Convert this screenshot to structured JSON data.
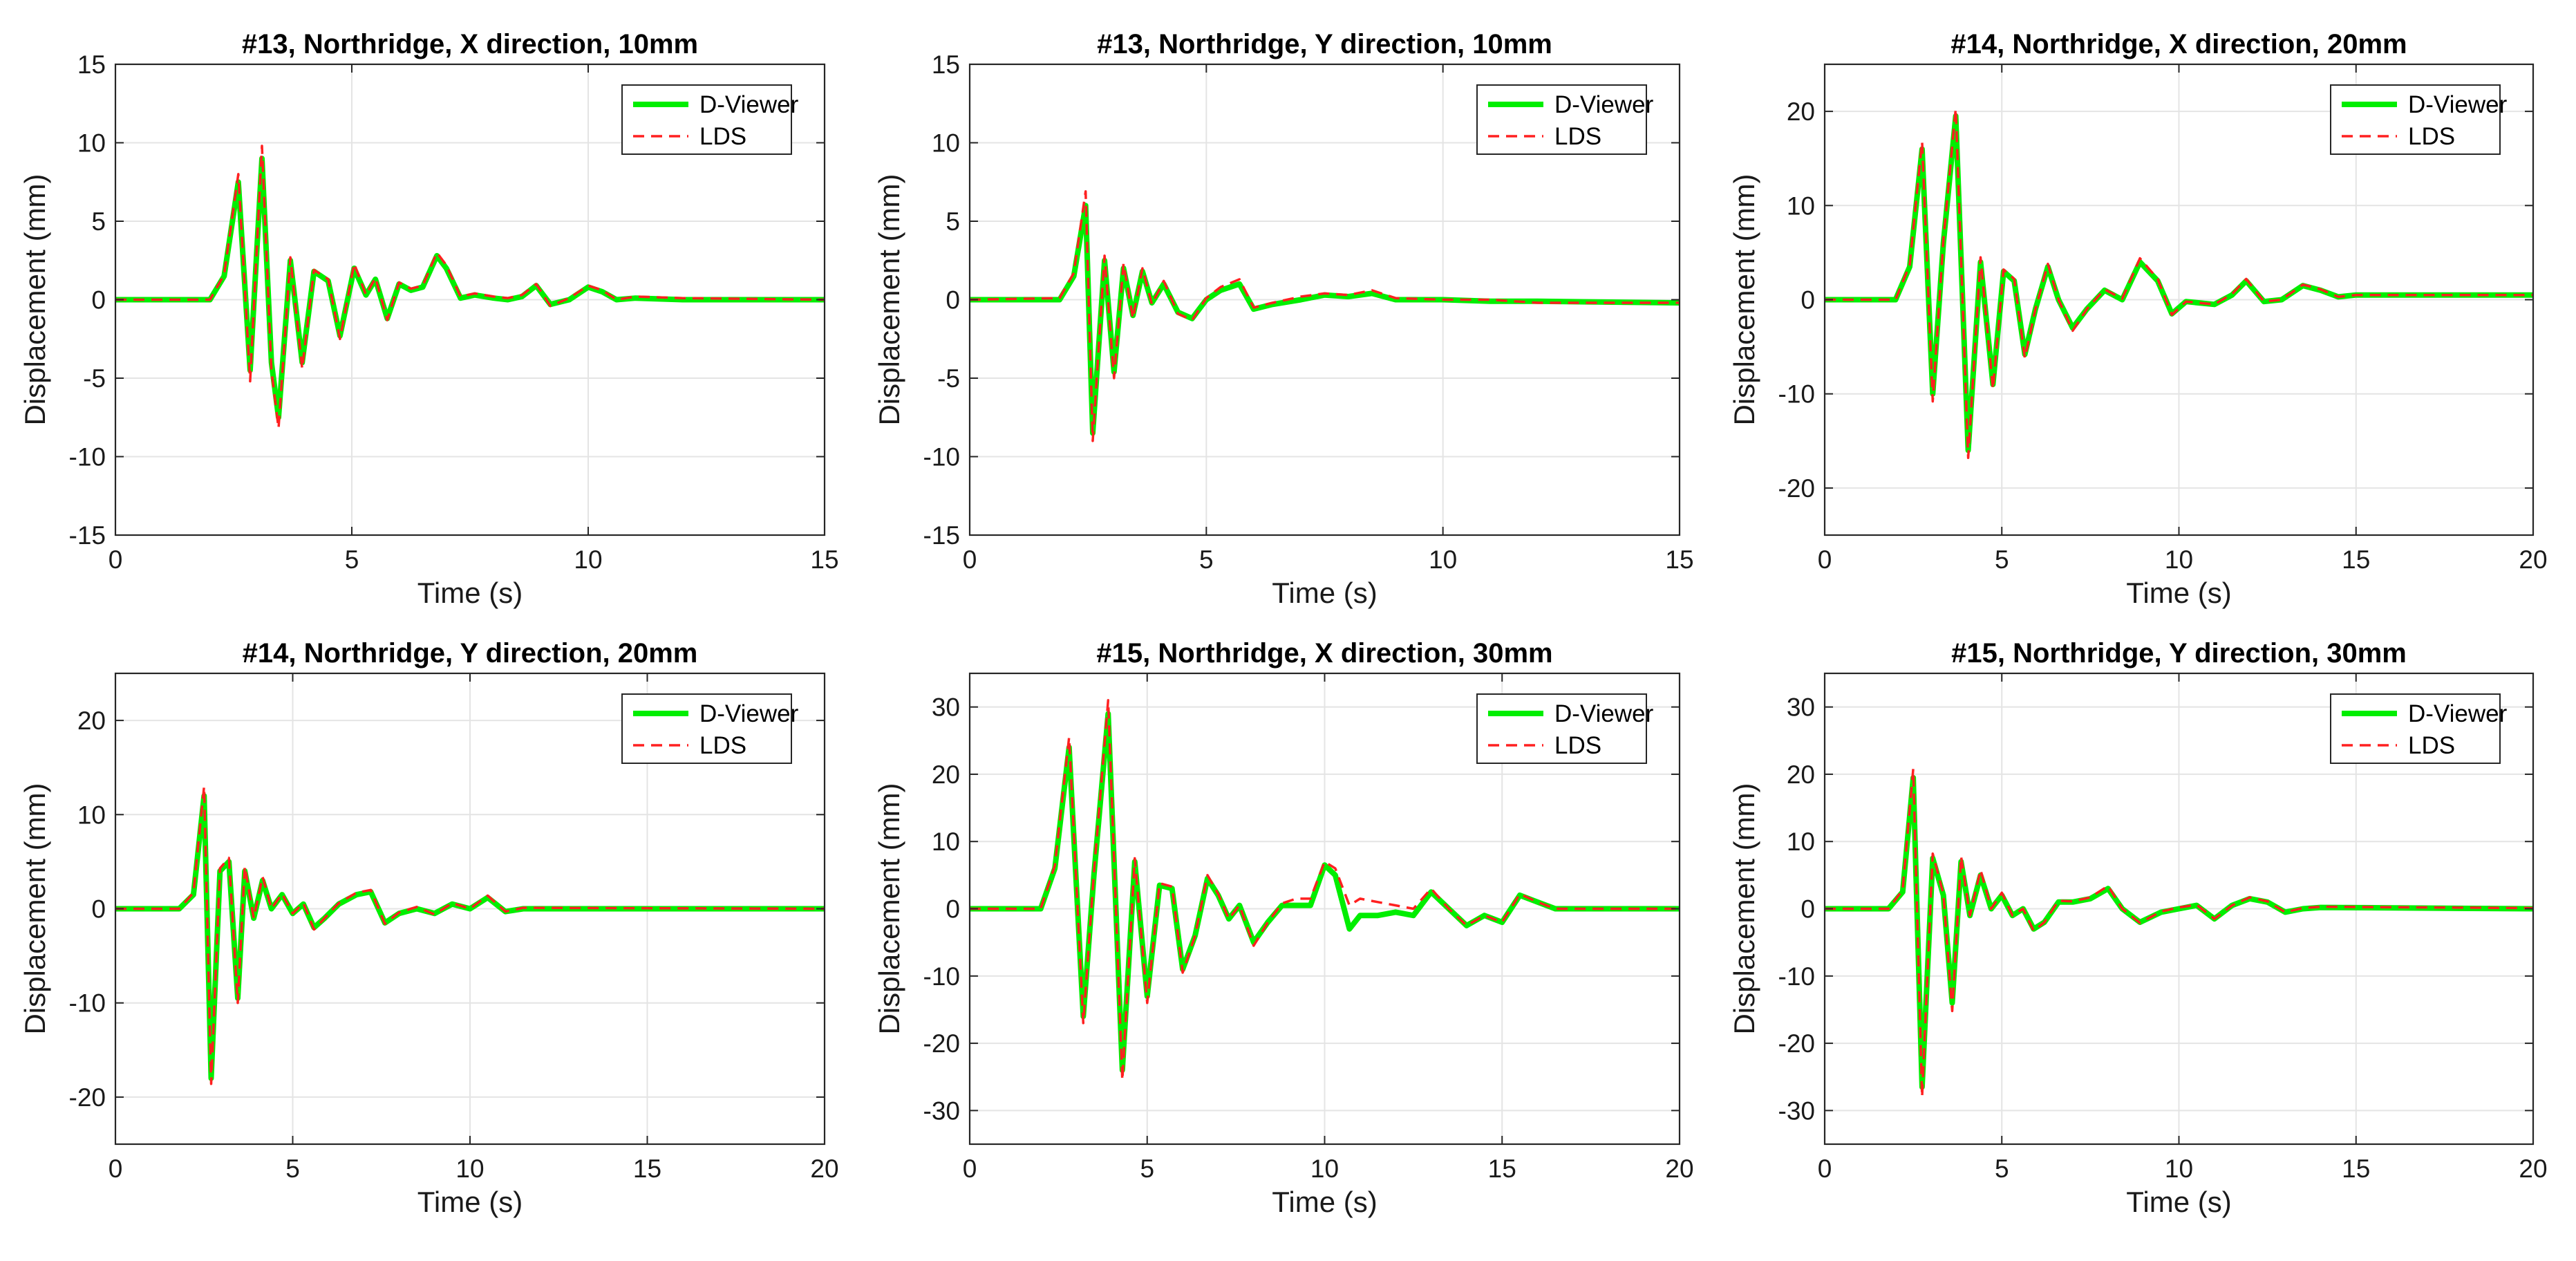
{
  "chart_data": [
    {
      "type": "line",
      "title": "#13, Northridge, X direction, 10mm",
      "xlabel": "Time (s)",
      "ylabel": "Displacement (mm)",
      "xlim": [
        0,
        15
      ],
      "ylim": [
        -15,
        15
      ],
      "xticks": [
        0,
        5,
        10,
        15
      ],
      "yticks": [
        -15,
        -10,
        -5,
        0,
        5,
        10,
        15
      ],
      "grid": true,
      "legend_position": "top-right",
      "series": [
        {
          "name": "D-Viewer",
          "color": "#00ee00",
          "style": "solid",
          "x": [
            0,
            2.0,
            2.3,
            2.6,
            2.85,
            3.1,
            3.3,
            3.45,
            3.7,
            3.95,
            4.2,
            4.5,
            4.75,
            5.05,
            5.3,
            5.5,
            5.75,
            6.0,
            6.25,
            6.5,
            6.8,
            7.0,
            7.3,
            7.6,
            8.0,
            8.3,
            8.6,
            8.9,
            9.2,
            9.6,
            10.0,
            10.3,
            10.6,
            11.0,
            12.0,
            15.0
          ],
          "y": [
            0,
            0,
            1.5,
            7.5,
            -4.5,
            9.0,
            -4.0,
            -7.5,
            2.5,
            -4.0,
            1.8,
            1.2,
            -2.3,
            2.0,
            0.3,
            1.3,
            -1.2,
            1.0,
            0.6,
            0.8,
            2.8,
            2.0,
            0.1,
            0.3,
            0.1,
            0.0,
            0.2,
            0.9,
            -0.3,
            0.0,
            0.8,
            0.5,
            0.0,
            0.1,
            0.0,
            0.0
          ]
        },
        {
          "name": "LDS",
          "color": "#ff2020",
          "style": "dashed",
          "x": [
            0,
            2.0,
            2.3,
            2.6,
            2.85,
            3.1,
            3.3,
            3.45,
            3.7,
            3.95,
            4.2,
            4.5,
            4.75,
            5.05,
            5.3,
            5.5,
            5.75,
            6.0,
            6.25,
            6.5,
            6.8,
            7.0,
            7.3,
            7.6,
            8.0,
            8.3,
            8.6,
            8.9,
            9.2,
            9.6,
            10.0,
            10.3,
            10.6,
            11.0,
            12.0,
            15.0
          ],
          "y": [
            0,
            0,
            1.6,
            8.0,
            -5.2,
            9.8,
            -4.5,
            -8.2,
            2.7,
            -4.4,
            1.9,
            1.3,
            -2.5,
            2.3,
            0.3,
            1.4,
            -1.3,
            1.1,
            0.7,
            0.9,
            3.0,
            2.2,
            0.2,
            0.4,
            0.2,
            0.1,
            0.3,
            1.0,
            -0.4,
            0.1,
            0.9,
            0.6,
            0.0,
            0.2,
            0.1,
            0.0
          ]
        }
      ]
    },
    {
      "type": "line",
      "title": "#13, Northridge, Y direction, 10mm",
      "xlabel": "Time (s)",
      "ylabel": "Displacement (mm)",
      "xlim": [
        0,
        15
      ],
      "ylim": [
        -15,
        15
      ],
      "xticks": [
        0,
        5,
        10,
        15
      ],
      "yticks": [
        -15,
        -10,
        -5,
        0,
        5,
        10,
        15
      ],
      "grid": true,
      "legend_position": "top-right",
      "series": [
        {
          "name": "D-Viewer",
          "color": "#00ee00",
          "style": "solid",
          "x": [
            0,
            1.9,
            2.2,
            2.45,
            2.6,
            2.85,
            3.05,
            3.25,
            3.45,
            3.65,
            3.85,
            4.1,
            4.4,
            4.7,
            5.0,
            5.3,
            5.7,
            6.0,
            6.4,
            7.0,
            7.5,
            8.0,
            8.5,
            9.0,
            10.0,
            11.0,
            12.0,
            15.0
          ],
          "y": [
            0,
            0,
            1.5,
            6.0,
            -8.5,
            2.5,
            -4.6,
            2.0,
            -1.0,
            1.8,
            -0.2,
            1.0,
            -0.8,
            -1.2,
            0.0,
            0.6,
            1.0,
            -0.6,
            -0.3,
            0.0,
            0.3,
            0.2,
            0.4,
            0.0,
            0.0,
            -0.1,
            -0.1,
            -0.2
          ]
        },
        {
          "name": "LDS",
          "color": "#ff2020",
          "style": "dashed",
          "x": [
            0,
            1.9,
            2.2,
            2.45,
            2.6,
            2.85,
            3.05,
            3.25,
            3.45,
            3.65,
            3.85,
            4.1,
            4.4,
            4.7,
            5.0,
            5.3,
            5.7,
            6.0,
            6.4,
            7.0,
            7.5,
            8.0,
            8.5,
            9.0,
            10.0,
            11.0,
            12.0,
            15.0
          ],
          "y": [
            0,
            0.1,
            1.7,
            6.9,
            -9.0,
            2.8,
            -5.0,
            2.3,
            -1.2,
            2.0,
            -0.3,
            1.2,
            -0.9,
            -1.3,
            0.1,
            0.8,
            1.3,
            -0.5,
            -0.2,
            0.2,
            0.4,
            0.3,
            0.6,
            0.1,
            0.0,
            0.0,
            -0.2,
            -0.2
          ]
        }
      ]
    },
    {
      "type": "line",
      "title": "#14, Northridge, X direction, 20mm",
      "xlabel": "Time (s)",
      "ylabel": "Displacement (mm)",
      "xlim": [
        0,
        20
      ],
      "ylim": [
        -25,
        25
      ],
      "xticks": [
        0,
        5,
        10,
        15,
        20
      ],
      "yticks": [
        -20,
        -10,
        0,
        10,
        20
      ],
      "grid": true,
      "legend_position": "top-right",
      "series": [
        {
          "name": "D-Viewer",
          "color": "#00ee00",
          "style": "solid",
          "x": [
            0,
            2.0,
            2.4,
            2.75,
            3.05,
            3.35,
            3.7,
            4.05,
            4.4,
            4.75,
            5.05,
            5.35,
            5.65,
            5.95,
            6.3,
            6.6,
            7.0,
            7.4,
            7.9,
            8.4,
            8.9,
            9.4,
            9.8,
            10.2,
            11.0,
            11.5,
            11.9,
            12.4,
            12.9,
            13.5,
            14.0,
            14.5,
            15.0,
            20.0
          ],
          "y": [
            0,
            0,
            3.5,
            16.0,
            -10.0,
            6.0,
            19.5,
            -16.0,
            4.0,
            -9.0,
            3.0,
            2.0,
            -5.8,
            -1.0,
            3.5,
            0.0,
            -3.0,
            -1.0,
            1.0,
            0.0,
            4.0,
            2.0,
            -1.5,
            -0.2,
            -0.5,
            0.5,
            2.0,
            -0.2,
            0.0,
            1.5,
            1.0,
            0.3,
            0.5,
            0.5
          ]
        },
        {
          "name": "LDS",
          "color": "#ff2020",
          "style": "dashed",
          "x": [
            0,
            2.0,
            2.4,
            2.75,
            3.05,
            3.35,
            3.7,
            4.05,
            4.4,
            4.75,
            5.05,
            5.35,
            5.65,
            5.95,
            6.3,
            6.6,
            7.0,
            7.4,
            7.9,
            8.4,
            8.9,
            9.4,
            9.8,
            10.2,
            11.0,
            11.5,
            11.9,
            12.4,
            12.9,
            13.5,
            14.0,
            14.5,
            15.0,
            20.0
          ],
          "y": [
            0,
            0,
            3.7,
            16.8,
            -10.8,
            6.3,
            20.3,
            -16.8,
            4.5,
            -9.5,
            3.2,
            2.2,
            -6.2,
            -1.0,
            3.8,
            0.0,
            -3.3,
            -1.0,
            1.1,
            0.1,
            4.4,
            2.2,
            -1.6,
            -0.2,
            -0.5,
            0.6,
            2.2,
            -0.2,
            0.0,
            1.6,
            1.1,
            0.3,
            0.5,
            0.5
          ]
        }
      ]
    },
    {
      "type": "line",
      "title": "#14, Northridge, Y direction, 20mm",
      "xlabel": "Time (s)",
      "ylabel": "Displacement (mm)",
      "xlim": [
        0,
        20
      ],
      "ylim": [
        -25,
        25
      ],
      "xticks": [
        0,
        5,
        10,
        15,
        20
      ],
      "yticks": [
        -20,
        -10,
        0,
        10,
        20
      ],
      "grid": true,
      "legend_position": "top-right",
      "series": [
        {
          "name": "D-Viewer",
          "color": "#00ee00",
          "style": "solid",
          "x": [
            0,
            1.8,
            2.2,
            2.5,
            2.7,
            2.95,
            3.2,
            3.45,
            3.65,
            3.9,
            4.15,
            4.4,
            4.7,
            5.0,
            5.3,
            5.6,
            5.9,
            6.3,
            6.8,
            7.2,
            7.6,
            8.0,
            8.5,
            9.0,
            9.5,
            10.0,
            10.5,
            11.0,
            11.5,
            20.0
          ],
          "y": [
            0,
            0,
            1.5,
            12.0,
            -18.0,
            4.0,
            5.0,
            -9.5,
            4.0,
            -1.0,
            3.0,
            0.0,
            1.5,
            -0.5,
            0.5,
            -2.0,
            -1.0,
            0.5,
            1.5,
            1.8,
            -1.5,
            -0.5,
            0.0,
            -0.5,
            0.5,
            0.0,
            1.2,
            -0.3,
            0.0,
            0.0
          ]
        },
        {
          "name": "LDS",
          "color": "#ff2020",
          "style": "dashed",
          "x": [
            0,
            1.8,
            2.2,
            2.5,
            2.7,
            2.95,
            3.2,
            3.45,
            3.65,
            3.9,
            4.15,
            4.4,
            4.7,
            5.0,
            5.3,
            5.6,
            5.9,
            6.3,
            6.8,
            7.2,
            7.6,
            8.0,
            8.5,
            9.0,
            9.5,
            10.0,
            10.5,
            11.0,
            11.5,
            20.0
          ],
          "y": [
            0,
            0,
            1.7,
            13.0,
            -18.6,
            4.3,
            5.4,
            -10.0,
            4.5,
            -1.0,
            3.4,
            0.0,
            1.6,
            -0.5,
            0.6,
            -2.2,
            -1.0,
            0.6,
            1.7,
            2.0,
            -1.6,
            -0.4,
            0.2,
            -0.6,
            0.6,
            0.0,
            1.4,
            -0.3,
            0.1,
            0.0
          ]
        }
      ]
    },
    {
      "type": "line",
      "title": "#15, Northridge, X direction, 30mm",
      "xlabel": "Time (s)",
      "ylabel": "Displacement (mm)",
      "xlim": [
        0,
        20
      ],
      "ylim": [
        -35,
        35
      ],
      "xticks": [
        0,
        5,
        10,
        15,
        20
      ],
      "yticks": [
        -30,
        -20,
        -10,
        0,
        10,
        20,
        30
      ],
      "grid": true,
      "legend_position": "top-right",
      "series": [
        {
          "name": "D-Viewer",
          "color": "#00ee00",
          "style": "solid",
          "x": [
            0,
            2.0,
            2.4,
            2.8,
            3.2,
            3.5,
            3.9,
            4.3,
            4.65,
            5.0,
            5.35,
            5.7,
            6.0,
            6.35,
            6.7,
            7.0,
            7.3,
            7.6,
            8.0,
            8.4,
            8.8,
            9.2,
            9.6,
            10.0,
            10.3,
            10.7,
            11.0,
            11.5,
            12.0,
            12.5,
            13.0,
            13.5,
            14.0,
            14.5,
            15.0,
            15.5,
            16.0,
            16.5,
            17.0,
            20.0
          ],
          "y": [
            0,
            0,
            6.0,
            24.0,
            -16.0,
            5.0,
            29.0,
            -24.0,
            7.0,
            -13.0,
            3.5,
            3.0,
            -9.0,
            -4.0,
            4.5,
            2.0,
            -1.5,
            0.5,
            -5.0,
            -2.0,
            0.5,
            0.5,
            0.5,
            6.5,
            5.0,
            -3.0,
            -1.0,
            -1.0,
            -0.5,
            -1.0,
            2.5,
            0.0,
            -2.5,
            -1.0,
            -2.0,
            2.0,
            1.0,
            0.0,
            0.0,
            0.0
          ]
        },
        {
          "name": "LDS",
          "color": "#ff2020",
          "style": "dashed",
          "x": [
            0,
            2.0,
            2.4,
            2.8,
            3.2,
            3.5,
            3.9,
            4.3,
            4.65,
            5.0,
            5.35,
            5.7,
            6.0,
            6.35,
            6.7,
            7.0,
            7.3,
            7.6,
            8.0,
            8.4,
            8.8,
            9.2,
            9.6,
            10.0,
            10.3,
            10.7,
            11.0,
            11.5,
            12.0,
            12.5,
            13.0,
            13.5,
            14.0,
            14.5,
            15.0,
            15.5,
            16.0,
            16.5,
            17.0,
            20.0
          ],
          "y": [
            0,
            0,
            6.4,
            25.5,
            -17.0,
            5.3,
            31.0,
            -25.5,
            7.5,
            -14.0,
            3.8,
            3.3,
            -9.5,
            -4.0,
            5.0,
            2.2,
            -1.5,
            0.5,
            -5.5,
            -2.0,
            0.8,
            1.5,
            1.5,
            7.0,
            6.0,
            0.5,
            1.5,
            1.0,
            0.5,
            0.0,
            3.0,
            0.0,
            -2.5,
            -1.0,
            -2.0,
            2.2,
            1.0,
            0.0,
            0.0,
            0.0
          ]
        }
      ]
    },
    {
      "type": "line",
      "title": "#15, Northridge, Y direction, 30mm",
      "xlabel": "Time (s)",
      "ylabel": "Displacement (mm)",
      "xlim": [
        0,
        20
      ],
      "ylim": [
        -35,
        35
      ],
      "xticks": [
        0,
        5,
        10,
        15,
        20
      ],
      "yticks": [
        -30,
        -20,
        -10,
        0,
        10,
        20,
        30
      ],
      "grid": true,
      "legend_position": "top-right",
      "series": [
        {
          "name": "D-Viewer",
          "color": "#00ee00",
          "style": "solid",
          "x": [
            0,
            1.8,
            2.2,
            2.5,
            2.75,
            3.05,
            3.35,
            3.6,
            3.85,
            4.1,
            4.4,
            4.7,
            5.0,
            5.3,
            5.6,
            5.9,
            6.2,
            6.6,
            7.0,
            7.5,
            8.0,
            8.4,
            8.9,
            9.5,
            10.0,
            10.5,
            11.0,
            11.5,
            12.0,
            12.5,
            13.0,
            13.5,
            14.0,
            20.0
          ],
          "y": [
            0,
            0,
            2.5,
            19.5,
            -26.5,
            7.5,
            2.0,
            -14.0,
            7.0,
            -1.0,
            5.0,
            0.0,
            2.0,
            -1.0,
            0.0,
            -3.0,
            -2.0,
            1.0,
            1.0,
            1.5,
            3.0,
            0.0,
            -2.0,
            -0.5,
            0.0,
            0.5,
            -1.5,
            0.5,
            1.5,
            1.0,
            -0.5,
            0.0,
            0.2,
            0.0
          ]
        },
        {
          "name": "LDS",
          "color": "#ff2020",
          "style": "dashed",
          "x": [
            0,
            1.8,
            2.2,
            2.5,
            2.75,
            3.05,
            3.35,
            3.6,
            3.85,
            4.1,
            4.4,
            4.7,
            5.0,
            5.3,
            5.6,
            5.9,
            6.2,
            6.6,
            7.0,
            7.5,
            8.0,
            8.4,
            8.9,
            9.5,
            10.0,
            10.5,
            11.0,
            11.5,
            12.0,
            12.5,
            13.0,
            13.5,
            14.0,
            20.0
          ],
          "y": [
            0,
            0,
            2.8,
            20.8,
            -28.0,
            8.2,
            2.2,
            -15.2,
            7.8,
            -1.0,
            5.8,
            0.0,
            2.4,
            -1.0,
            0.0,
            -3.3,
            -2.0,
            1.2,
            1.1,
            1.7,
            3.4,
            0.0,
            -2.1,
            -0.4,
            0.2,
            0.6,
            -1.5,
            0.5,
            1.7,
            1.1,
            -0.5,
            0.1,
            0.3,
            0.1
          ]
        }
      ]
    }
  ]
}
